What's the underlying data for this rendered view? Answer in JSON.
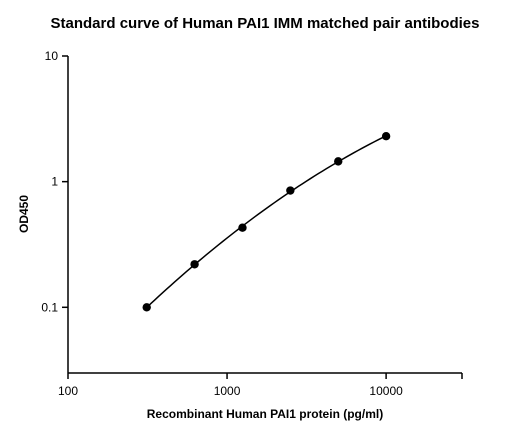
{
  "chart_data": {
    "type": "scatter",
    "title": "Standard curve of Human PAI1 IMM matched pair antibodies",
    "xlabel": "Recombinant Human PAI1 protein (pg/ml)",
    "ylabel": "OD450",
    "xscale": "log",
    "yscale": "log",
    "xlim": [
      100,
      30000
    ],
    "ylim": [
      0.03,
      10
    ],
    "x_ticks": [
      100,
      1000,
      10000
    ],
    "x_tick_labels": [
      "100",
      "1000",
      "10000"
    ],
    "y_ticks": [
      0.1,
      1,
      10
    ],
    "y_tick_labels": [
      "0.1",
      "1",
      "10"
    ],
    "grid": false,
    "fit_curve": true,
    "series": [
      {
        "x": [
          312.5,
          625,
          1250,
          2500,
          5000,
          10000
        ],
        "y": [
          0.1,
          0.22,
          0.43,
          0.85,
          1.45,
          2.3
        ]
      }
    ],
    "colors": {
      "marker": "#000000",
      "line": "#000000",
      "axis": "#000000"
    }
  }
}
